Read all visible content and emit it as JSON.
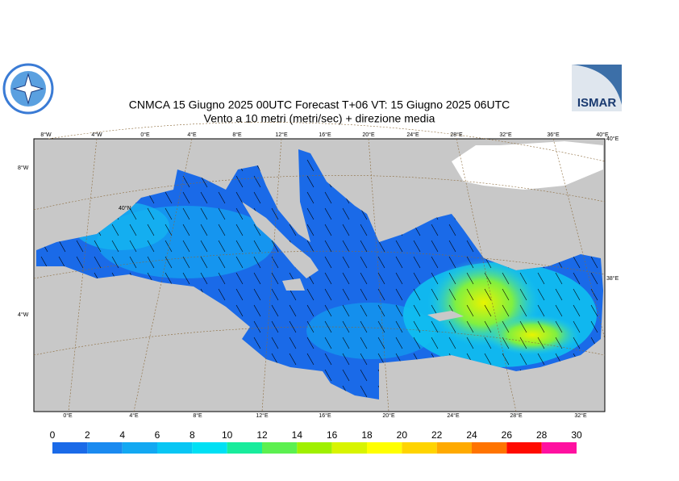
{
  "header": {
    "title": "CNMCA 15   Giugno  2025 00UTC Forecast T+06 VT: 15   Giugno  2025 06UTC",
    "subtitle": "Vento a 10 metri (metri/sec) + direzione media",
    "logo_right": "ISMAR"
  },
  "map": {
    "top_labels": [
      "8°W",
      "4°W",
      "0°E",
      "4°E",
      "8°E",
      "12°E",
      "16°E",
      "20°E",
      "24°E",
      "28°E",
      "32°E",
      "36°E",
      "40°E"
    ],
    "right_labels": [
      "40°E",
      "38°E"
    ],
    "left_labels": [
      "8°W",
      "4°W"
    ],
    "inner_labels": [
      "40°N"
    ],
    "bottom_labels": [
      "0°E",
      "4°E",
      "8°E",
      "12°E",
      "16°E",
      "20°E",
      "24°E",
      "28°E",
      "32°E"
    ]
  },
  "colorbar": {
    "ticks": [
      0,
      2,
      4,
      6,
      8,
      10,
      12,
      14,
      16,
      18,
      20,
      22,
      24,
      26,
      28,
      30
    ],
    "colors": [
      "#1a6ae8",
      "#1a8af0",
      "#12a8f2",
      "#08c6f4",
      "#00e0f4",
      "#18ec9c",
      "#5cf050",
      "#a0f000",
      "#d8f400",
      "#ffff00",
      "#ffd400",
      "#ffaa00",
      "#ff7400",
      "#ff0a00",
      "#ff10a0"
    ]
  }
}
